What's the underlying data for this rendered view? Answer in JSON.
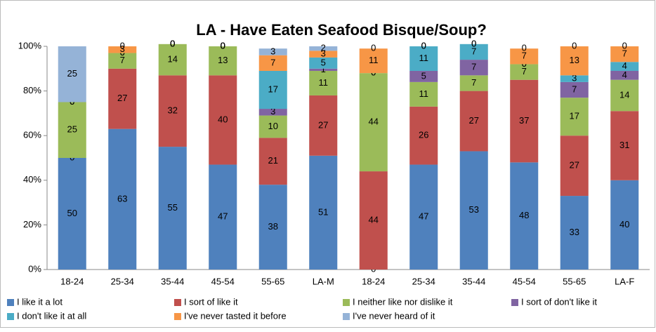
{
  "chart_data": {
    "type": "stacked_bar",
    "title": "LA - Have Eaten Seafood Bisque/Soup?",
    "categories": [
      "18-24",
      "25-34",
      "35-44",
      "45-54",
      "55-65",
      "LA-M",
      "18-24",
      "25-34",
      "35-44",
      "45-54",
      "55-65",
      "LA-F"
    ],
    "series": [
      {
        "name": "I like it a lot",
        "color": "#4f81bd",
        "values": [
          50,
          63,
          55,
          47,
          38,
          51,
          0,
          47,
          53,
          48,
          33,
          40
        ]
      },
      {
        "name": "I sort of like it",
        "color": "#c0504d",
        "values": [
          0,
          27,
          32,
          40,
          21,
          27,
          44,
          26,
          27,
          37,
          27,
          31
        ]
      },
      {
        "name": "I neither like nor dislike it",
        "color": "#9bbb59",
        "values": [
          25,
          7,
          14,
          13,
          10,
          11,
          44,
          11,
          7,
          7,
          17,
          14
        ]
      },
      {
        "name": "I sort of don't like it",
        "color": "#8064a2",
        "values": [
          0,
          0,
          0,
          0,
          3,
          1,
          0,
          5,
          7,
          0,
          7,
          4
        ]
      },
      {
        "name": "I don't like it at all",
        "color": "#4bacc6",
        "values": [
          0,
          0,
          0,
          0,
          17,
          5,
          0,
          11,
          7,
          0,
          3,
          4
        ]
      },
      {
        "name": "I've never tasted it before",
        "color": "#f79646",
        "values": [
          0,
          3,
          0,
          0,
          7,
          3,
          11,
          0,
          0,
          7,
          13,
          7
        ]
      },
      {
        "name": "I've never heard of it",
        "color": "#95b3d7",
        "values": [
          25,
          0,
          0,
          0,
          3,
          2,
          0,
          0,
          0,
          0,
          0,
          0
        ]
      }
    ],
    "ylim": [
      0,
      100
    ],
    "yticks": [
      {
        "value": 0,
        "label": "0%"
      },
      {
        "value": 20,
        "label": "20%"
      },
      {
        "value": 40,
        "label": "40%"
      },
      {
        "value": 60,
        "label": "60%"
      },
      {
        "value": 80,
        "label": "80%"
      },
      {
        "value": 100,
        "label": "100%"
      }
    ],
    "grid": false,
    "legend": "bottom"
  }
}
